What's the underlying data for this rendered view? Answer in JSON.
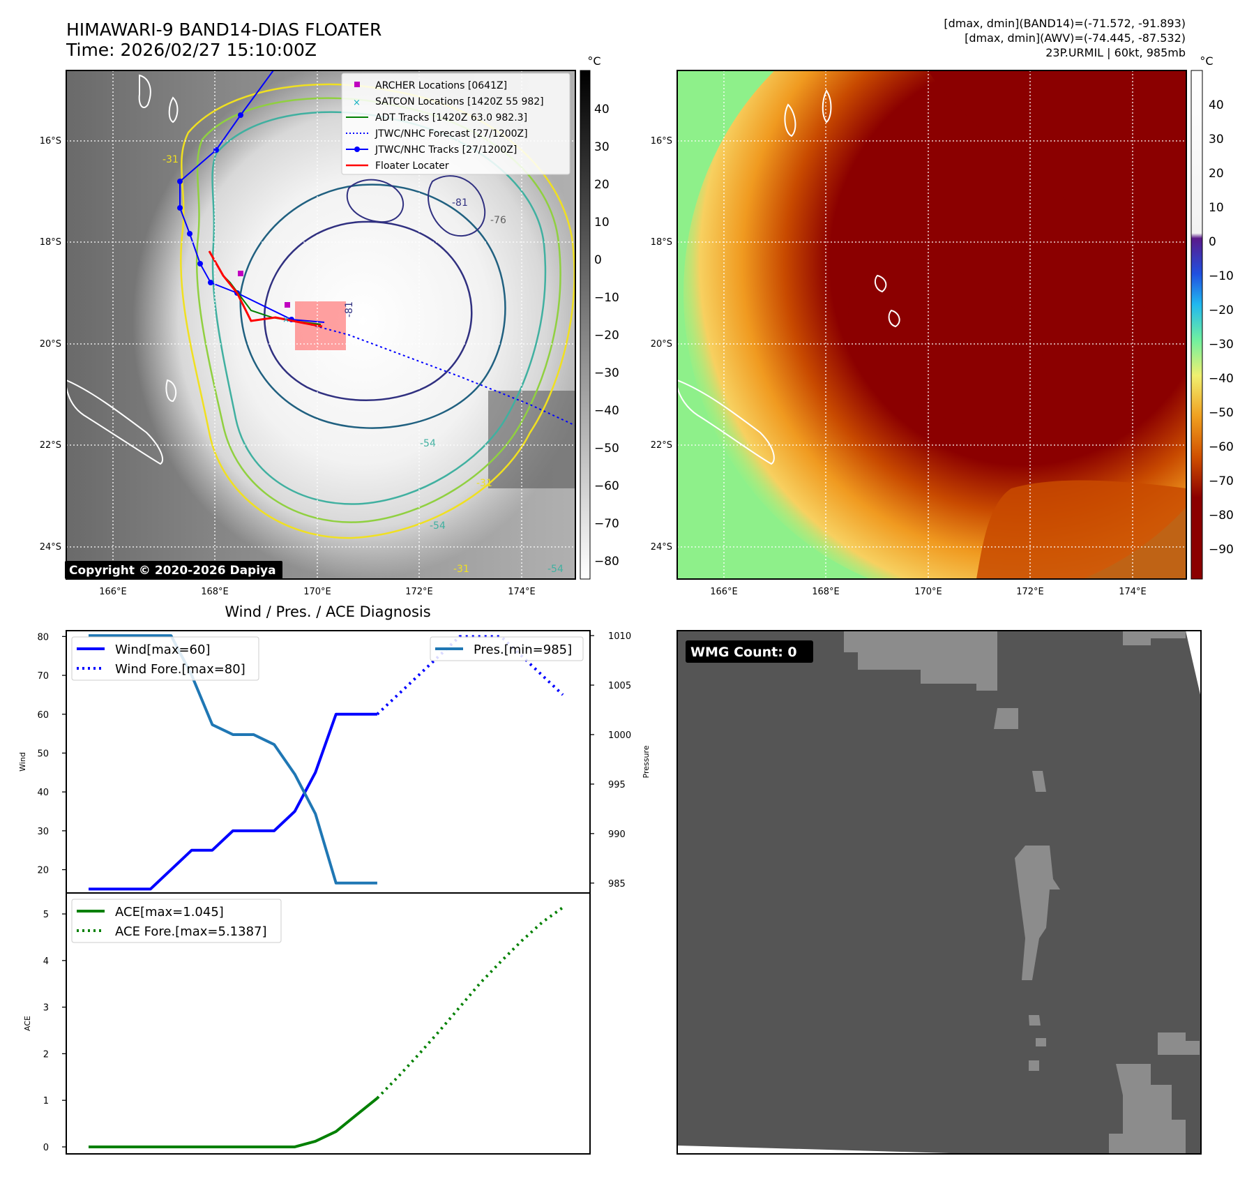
{
  "header": {
    "title": "HIMAWARI-9 BAND14-DIAS FLOATER",
    "time": "Time: 2026/02/27 15:10:00Z",
    "info_line1": "[dmax, dmin](BAND14)=(-71.572, -91.893)",
    "info_line2": "[dmax, dmin](AWV)=(-74.445, -87.532)",
    "info_line3": "23P.URMIL | 60kt, 985mb"
  },
  "map": {
    "lat_labels": [
      "16°S",
      "18°S",
      "20°S",
      "22°S",
      "24°S"
    ],
    "lon_labels": [
      "166°E",
      "168°E",
      "170°E",
      "172°E",
      "174°E"
    ],
    "copyright": "Copyright © 2020-2026 Dapiya",
    "contour_labels": [
      "-31",
      "-31",
      "-31",
      "-54",
      "-54",
      "-54",
      "-81",
      "-81",
      "-76"
    ],
    "legend": [
      {
        "label": "ARCHER Locations [0641Z]",
        "color": "#c000c0",
        "marker": "square"
      },
      {
        "label": "SATCON Locations [1420Z 55 982]",
        "color": "#10b0c0",
        "marker": "x"
      },
      {
        "label": "ADT Tracks [1420Z 63.0 982.3]",
        "color": "#008000",
        "marker": "line"
      },
      {
        "label": "JTWC/NHC Forecast [27/1200Z]",
        "color": "#0000ff",
        "marker": "dotted"
      },
      {
        "label": "JTWC/NHC Tracks [27/1200Z]",
        "color": "#0000ff",
        "marker": "line-dot"
      },
      {
        "label": "Floater Locater",
        "color": "#ff0000",
        "marker": "line"
      }
    ],
    "colorbar_gray": {
      "unit": "°C",
      "ticks": [
        "40",
        "30",
        "20",
        "10",
        "0",
        "−10",
        "−20",
        "−30",
        "−40",
        "−50",
        "−60",
        "−70",
        "−80"
      ]
    },
    "colorbar_color": {
      "unit": "°C",
      "ticks": [
        "40",
        "30",
        "20",
        "10",
        "0",
        "−10",
        "−20",
        "−30",
        "−40",
        "−50",
        "−60",
        "−70",
        "−80",
        "−90"
      ]
    }
  },
  "wmg": {
    "label": "WMG Count: 0"
  },
  "chart_data": [
    {
      "type": "line",
      "title": "Wind / Pres. / ACE Diagnosis",
      "ylabel": "Wind",
      "y2label": "Pressure",
      "ylim": [
        14,
        81.5
      ],
      "y2lim": [
        984,
        1010.5
      ],
      "yticks": [
        20,
        30,
        40,
        50,
        60,
        70,
        80
      ],
      "y2ticks": [
        985,
        990,
        995,
        1000,
        1005,
        1010
      ],
      "x": [
        0,
        1,
        2,
        3,
        4,
        5,
        6,
        7,
        8,
        9,
        10,
        11,
        12,
        13,
        14,
        15,
        16,
        17,
        18,
        19,
        20,
        21,
        22,
        23
      ],
      "series": [
        {
          "name": "Wind[max=60]",
          "axis": "left",
          "style": "solid",
          "color": "#0000ff",
          "x": [
            0,
            1,
            2,
            3,
            4,
            5,
            6,
            7,
            8,
            9,
            10,
            11,
            12,
            13,
            14
          ],
          "values": [
            15,
            15,
            15,
            15,
            20,
            25,
            25,
            30,
            30,
            30,
            35,
            45,
            60,
            60,
            60
          ]
        },
        {
          "name": "Wind Fore.[max=80]",
          "axis": "left",
          "style": "dotted",
          "color": "#0000ff",
          "x": [
            14,
            15,
            16,
            17,
            18,
            19,
            20,
            21,
            22,
            23
          ],
          "values": [
            60,
            65,
            70,
            75,
            80,
            80,
            80,
            75,
            70,
            65
          ]
        },
        {
          "name": "Pres.[min=985]",
          "axis": "right",
          "style": "solid",
          "color": "#1f77b4",
          "x": [
            0,
            1,
            2,
            3,
            4,
            5,
            6,
            7,
            8,
            9,
            10,
            11,
            12,
            13,
            14
          ],
          "values": [
            1010,
            1010,
            1010,
            1010,
            1010,
            1006,
            1001,
            1000,
            1000,
            999,
            996,
            992,
            985,
            985,
            985
          ]
        }
      ],
      "legend": [
        "Wind[max=60]",
        "Wind Fore.[max=80]",
        "Pres.[min=985]"
      ]
    },
    {
      "type": "line",
      "ylabel": "ACE",
      "ylim": [
        -0.15,
        5.45
      ],
      "yticks": [
        0,
        1,
        2,
        3,
        4,
        5
      ],
      "x": [
        0,
        1,
        2,
        3,
        4,
        5,
        6,
        7,
        8,
        9,
        10,
        11,
        12,
        13,
        14,
        15,
        16,
        17,
        18,
        19,
        20,
        21,
        22,
        23
      ],
      "series": [
        {
          "name": "ACE[max=1.045]",
          "style": "solid",
          "color": "#008000",
          "x": [
            0,
            1,
            2,
            3,
            4,
            5,
            6,
            7,
            8,
            9,
            10,
            11,
            12,
            13,
            14
          ],
          "values": [
            0,
            0,
            0,
            0,
            0,
            0,
            0,
            0,
            0,
            0,
            0,
            0.12,
            0.33,
            0.69,
            1.045
          ]
        },
        {
          "name": "ACE Fore.[max=5.1387]",
          "style": "dotted",
          "color": "#008000",
          "x": [
            14,
            15,
            16,
            17,
            18,
            19,
            20,
            21,
            22,
            23
          ],
          "values": [
            1.045,
            1.5,
            1.98,
            2.48,
            3.0,
            3.52,
            3.98,
            4.42,
            4.82,
            5.1387
          ]
        }
      ],
      "legend": [
        "ACE[max=1.045]",
        "ACE Fore.[max=5.1387]"
      ]
    }
  ]
}
